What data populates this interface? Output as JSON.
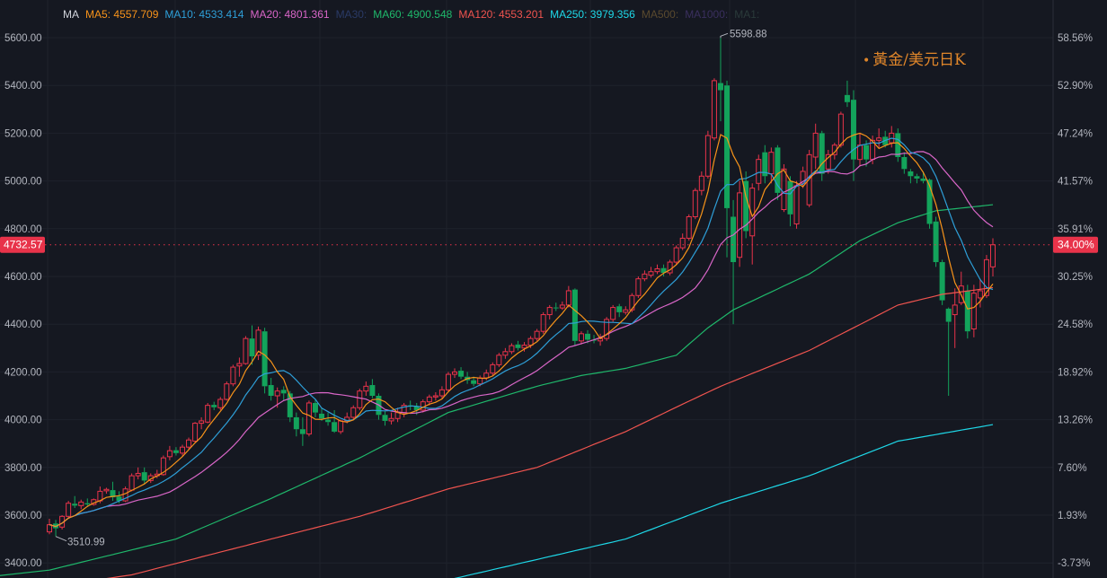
{
  "legend": [
    {
      "label": "MA",
      "color": "#d1d4dc"
    },
    {
      "label": "MA5: 4557.709",
      "color": "#f7931a"
    },
    {
      "label": "MA10: 4533.414",
      "color": "#2e9fd8"
    },
    {
      "label": "MA20: 4801.361",
      "color": "#d966c8"
    },
    {
      "label": "MA30:",
      "color": "#2a3a66"
    },
    {
      "label": "MA60: 4900.548",
      "color": "#1fb86b"
    },
    {
      "label": "MA120: 4553.201",
      "color": "#f0544f"
    },
    {
      "label": "MA250: 3979.356",
      "color": "#1ed8e8"
    },
    {
      "label": "MA500:",
      "color": "#5a4a2e"
    },
    {
      "label": "MA1000:",
      "color": "#3a2f5e"
    },
    {
      "label": "MA1:",
      "color": "#2a3a3a"
    }
  ],
  "title": {
    "dot": "•",
    "text": "黃金/美元日K"
  },
  "chart_data": {
    "type": "candlestick",
    "title": "黃金/美元日K",
    "ylim": [
      3400,
      5600
    ],
    "left_ticks": [
      "5600.00",
      "5400.00",
      "5200.00",
      "5000.00",
      "4800.00",
      "4600.00",
      "4400.00",
      "4200.00",
      "4000.00",
      "3800.00",
      "3600.00",
      "3400.00"
    ],
    "left_tick_values": [
      5600,
      5400,
      5200,
      5000,
      4800,
      4600,
      4400,
      4200,
      4000,
      3800,
      3600,
      3400
    ],
    "right_ticks": [
      "58.56%",
      "52.90%",
      "47.24%",
      "41.57%",
      "35.91%",
      "30.25%",
      "24.58%",
      "18.92%",
      "13.26%",
      "7.60%",
      "1.93%",
      "-3.73%"
    ],
    "current_price": {
      "value": 4732.57,
      "label": "4732.57",
      "percent_label": "34.00%"
    },
    "max_marker": {
      "value": 5598.88,
      "label": "5598.88",
      "index": 106
    },
    "min_marker": {
      "value": 3510.99,
      "label": "3510.99",
      "index": 1
    },
    "colors": {
      "up": "#e8334a",
      "down": "#13a35b",
      "ma5": "#f7931a",
      "ma10": "#2e9fd8",
      "ma20": "#d966c8",
      "ma60": "#1fb86b",
      "ma120": "#f0544f",
      "ma250": "#1ed8e8"
    },
    "ohlc": [
      [
        3530,
        3585,
        3520,
        3560
      ],
      [
        3565,
        3580,
        3510.99,
        3545
      ],
      [
        3550,
        3600,
        3540,
        3595
      ],
      [
        3595,
        3660,
        3590,
        3650
      ],
      [
        3648,
        3680,
        3630,
        3640
      ],
      [
        3640,
        3665,
        3625,
        3655
      ],
      [
        3650,
        3670,
        3635,
        3645
      ],
      [
        3645,
        3670,
        3640,
        3665
      ],
      [
        3660,
        3720,
        3650,
        3700
      ],
      [
        3702,
        3715,
        3690,
        3708
      ],
      [
        3705,
        3740,
        3660,
        3675
      ],
      [
        3678,
        3700,
        3650,
        3660
      ],
      [
        3660,
        3720,
        3655,
        3710
      ],
      [
        3705,
        3775,
        3700,
        3765
      ],
      [
        3765,
        3800,
        3750,
        3775
      ],
      [
        3780,
        3800,
        3730,
        3745
      ],
      [
        3745,
        3775,
        3735,
        3765
      ],
      [
        3765,
        3790,
        3755,
        3772
      ],
      [
        3770,
        3850,
        3765,
        3840
      ],
      [
        3845,
        3890,
        3830,
        3870
      ],
      [
        3872,
        3885,
        3850,
        3860
      ],
      [
        3860,
        3895,
        3850,
        3885
      ],
      [
        3885,
        3925,
        3875,
        3915
      ],
      [
        3910,
        3990,
        3905,
        3985
      ],
      [
        3985,
        4010,
        3960,
        3995
      ],
      [
        3990,
        4070,
        3985,
        4060
      ],
      [
        4062,
        4075,
        4040,
        4052
      ],
      [
        4050,
        4095,
        4040,
        4085
      ],
      [
        4085,
        4160,
        4080,
        4150
      ],
      [
        4150,
        4230,
        4140,
        4220
      ],
      [
        4225,
        4260,
        4180,
        4235
      ],
      [
        4235,
        4350,
        4230,
        4340
      ],
      [
        4340,
        4395,
        4230,
        4265
      ],
      [
        4270,
        4390,
        4250,
        4375
      ],
      [
        4370,
        4385,
        4110,
        4140
      ],
      [
        4145,
        4175,
        4080,
        4100
      ],
      [
        4100,
        4135,
        4050,
        4120
      ],
      [
        4125,
        4140,
        4080,
        4110
      ],
      [
        4110,
        4120,
        3990,
        4010
      ],
      [
        4010,
        4030,
        3930,
        3960
      ],
      [
        3960,
        4010,
        3890,
        3940
      ],
      [
        3940,
        4080,
        3930,
        4070
      ],
      [
        4070,
        4085,
        4010,
        4030
      ],
      [
        4025,
        4050,
        3995,
        4005
      ],
      [
        4000,
        4030,
        3975,
        3990
      ],
      [
        3990,
        4040,
        3945,
        3950
      ],
      [
        3950,
        4000,
        3940,
        3995
      ],
      [
        3995,
        4030,
        3985,
        4010
      ],
      [
        4010,
        4060,
        4000,
        4050
      ],
      [
        4050,
        4130,
        4040,
        4120
      ],
      [
        4120,
        4160,
        4100,
        4140
      ],
      [
        4145,
        4170,
        4090,
        4100
      ],
      [
        4100,
        4110,
        4000,
        4020
      ],
      [
        4020,
        4035,
        3975,
        3995
      ],
      [
        3995,
        4030,
        3980,
        4005
      ],
      [
        4005,
        4050,
        3990,
        4030
      ],
      [
        4030,
        4070,
        4010,
        4060
      ],
      [
        4060,
        4080,
        4040,
        4055
      ],
      [
        4055,
        4070,
        4020,
        4040
      ],
      [
        4040,
        4085,
        4030,
        4075
      ],
      [
        4075,
        4105,
        4060,
        4095
      ],
      [
        4095,
        4115,
        4080,
        4100
      ],
      [
        4100,
        4140,
        4090,
        4125
      ],
      [
        4125,
        4200,
        4115,
        4190
      ],
      [
        4190,
        4215,
        4175,
        4200
      ],
      [
        4205,
        4220,
        4170,
        4180
      ],
      [
        4180,
        4200,
        4150,
        4165
      ],
      [
        4165,
        4180,
        4140,
        4150
      ],
      [
        4150,
        4185,
        4140,
        4175
      ],
      [
        4175,
        4210,
        4165,
        4195
      ],
      [
        4195,
        4240,
        4185,
        4230
      ],
      [
        4230,
        4280,
        4220,
        4270
      ],
      [
        4270,
        4300,
        4255,
        4285
      ],
      [
        4285,
        4320,
        4275,
        4310
      ],
      [
        4315,
        4330,
        4290,
        4300
      ],
      [
        4300,
        4325,
        4285,
        4312
      ],
      [
        4312,
        4350,
        4300,
        4340
      ],
      [
        4340,
        4380,
        4330,
        4370
      ],
      [
        4370,
        4450,
        4360,
        4440
      ],
      [
        4440,
        4480,
        4420,
        4470
      ],
      [
        4470,
        4490,
        4455,
        4468
      ],
      [
        4468,
        4495,
        4460,
        4480
      ],
      [
        4480,
        4560,
        4470,
        4540
      ],
      [
        4545,
        4550,
        4310,
        4330
      ],
      [
        4330,
        4370,
        4315,
        4360
      ],
      [
        4360,
        4375,
        4320,
        4335
      ],
      [
        4335,
        4355,
        4320,
        4332
      ],
      [
        4330,
        4360,
        4310,
        4340
      ],
      [
        4340,
        4430,
        4330,
        4420
      ],
      [
        4420,
        4480,
        4410,
        4470
      ],
      [
        4475,
        4485,
        4430,
        4450
      ],
      [
        4450,
        4475,
        4440,
        4460
      ],
      [
        4460,
        4530,
        4450,
        4520
      ],
      [
        4520,
        4600,
        4510,
        4590
      ],
      [
        4590,
        4625,
        4580,
        4610
      ],
      [
        4605,
        4640,
        4595,
        4620
      ],
      [
        4620,
        4650,
        4610,
        4632
      ],
      [
        4635,
        4650,
        4600,
        4615
      ],
      [
        4615,
        4670,
        4605,
        4660
      ],
      [
        4660,
        4730,
        4650,
        4720
      ],
      [
        4720,
        4780,
        4710,
        4760
      ],
      [
        4760,
        4860,
        4750,
        4850
      ],
      [
        4850,
        4970,
        4840,
        4960
      ],
      [
        4960,
        5040,
        4940,
        5020
      ],
      [
        5020,
        5210,
        5010,
        5190
      ],
      [
        5180,
        5430,
        5170,
        5420
      ],
      [
        5410,
        5598.88,
        5250,
        5380
      ],
      [
        5400,
        5420,
        4680,
        4886
      ],
      [
        4850,
        4920,
        4400,
        4660
      ],
      [
        4680,
        5000,
        4640,
        4950
      ],
      [
        5000,
        5040,
        4760,
        4790
      ],
      [
        4770,
        4990,
        4650,
        4970
      ],
      [
        4990,
        5110,
        4960,
        5090
      ],
      [
        5120,
        5150,
        4990,
        5020
      ],
      [
        5030,
        5140,
        4990,
        5120
      ],
      [
        5140,
        5150,
        4920,
        4950
      ],
      [
        4880,
        5070,
        4870,
        5050
      ],
      [
        5000,
        5020,
        4810,
        4860
      ],
      [
        4820,
        5000,
        4800,
        4980
      ],
      [
        4990,
        5060,
        4970,
        5040
      ],
      [
        4900,
        5130,
        4890,
        5110
      ],
      [
        5100,
        5240,
        5050,
        5200
      ],
      [
        5200,
        5210,
        5000,
        5030
      ],
      [
        5050,
        5130,
        5030,
        5110
      ],
      [
        5110,
        5160,
        5090,
        5150
      ],
      [
        5150,
        5290,
        5140,
        5280
      ],
      [
        5360,
        5420,
        5310,
        5330
      ],
      [
        5340,
        5380,
        5000,
        5090
      ],
      [
        5090,
        5200,
        5060,
        5150
      ],
      [
        5150,
        5170,
        5060,
        5090
      ],
      [
        5090,
        5190,
        5070,
        5170
      ],
      [
        5170,
        5220,
        5140,
        5180
      ],
      [
        5185,
        5210,
        5140,
        5150
      ],
      [
        5160,
        5230,
        5140,
        5200
      ],
      [
        5200,
        5220,
        5080,
        5100
      ],
      [
        5100,
        5120,
        5030,
        5050
      ],
      [
        5040,
        5050,
        4990,
        5020
      ],
      [
        5020,
        5030,
        4990,
        5010
      ],
      [
        5010,
        5040,
        4990,
        5000
      ],
      [
        5005,
        5010,
        4800,
        4820
      ],
      [
        4830,
        4850,
        4640,
        4660
      ],
      [
        4660,
        4670,
        4480,
        4500
      ],
      [
        4465,
        4470,
        4100,
        4410
      ],
      [
        4440,
        4550,
        4300,
        4480
      ],
      [
        4490,
        4620,
        4480,
        4560
      ],
      [
        4540,
        4565,
        4340,
        4370
      ],
      [
        4380,
        4565,
        4345,
        4530
      ],
      [
        4510,
        4590,
        4470,
        4540
      ],
      [
        4520,
        4690,
        4510,
        4670
      ],
      [
        4640,
        4760,
        4600,
        4732.57
      ]
    ],
    "ma_long": {
      "ma60": [
        [
          0,
          3370
        ],
        [
          20,
          3500
        ],
        [
          35,
          3670
        ],
        [
          49,
          3840
        ],
        [
          63,
          4030
        ],
        [
          77,
          4140
        ],
        [
          84,
          4185
        ],
        [
          91,
          4215
        ],
        [
          99,
          4270
        ],
        [
          104,
          4385
        ],
        [
          108,
          4460
        ],
        [
          120,
          4610
        ],
        [
          128,
          4750
        ],
        [
          134,
          4825
        ],
        [
          140,
          4875
        ],
        [
          149,
          4900.548
        ]
      ],
      "ma120": [
        [
          0,
          3300
        ],
        [
          13,
          3350
        ],
        [
          35,
          3500
        ],
        [
          49,
          3595
        ],
        [
          63,
          3710
        ],
        [
          77,
          3800
        ],
        [
          91,
          3950
        ],
        [
          100,
          4065
        ],
        [
          106,
          4140
        ],
        [
          120,
          4290
        ],
        [
          134,
          4480
        ],
        [
          141,
          4525
        ],
        [
          149,
          4553.201
        ]
      ],
      "ma250": [
        [
          64,
          3335
        ],
        [
          91,
          3500
        ],
        [
          106,
          3650
        ],
        [
          120,
          3765
        ],
        [
          134,
          3910
        ],
        [
          149,
          3979.356
        ]
      ]
    }
  }
}
